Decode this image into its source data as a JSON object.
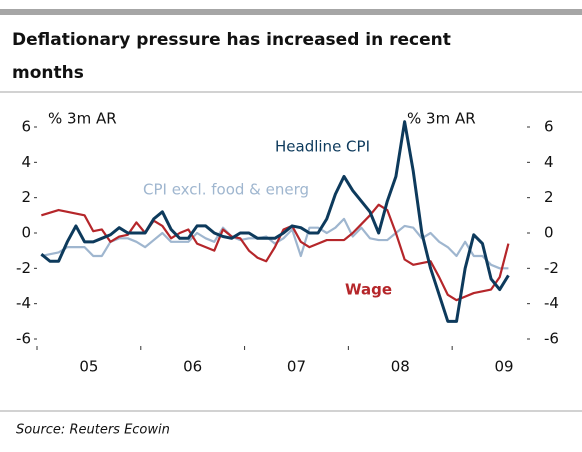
{
  "chart_data": {
    "type": "line",
    "title_lines": [
      "Deflationary pressure has increased in recent",
      "months"
    ],
    "y_label": "% 3m AR",
    "y2_label": "% 3m AR",
    "source": "Source: Reuters Ecowin",
    "xlim": [
      2005,
      2009.75
    ],
    "xticks": [
      {
        "value": 2005.5,
        "label": "05"
      },
      {
        "value": 2006.5,
        "label": "06"
      },
      {
        "value": 2007.5,
        "label": "07"
      },
      {
        "value": 2008.5,
        "label": "08"
      },
      {
        "value": 2009.5,
        "label": "09"
      }
    ],
    "x_tick_marks": [
      2006,
      2007,
      2008,
      2009
    ],
    "ylim": [
      -6,
      6
    ],
    "yticks": [
      6,
      4,
      2,
      0,
      -2,
      -4,
      -6
    ],
    "y2lim": [
      -6,
      6
    ],
    "y2ticks": [
      6,
      4,
      2,
      0,
      -2,
      -4,
      -6
    ],
    "x": [
      2005.042,
      2005.125,
      2005.208,
      2005.292,
      2005.375,
      2005.458,
      2005.542,
      2005.625,
      2005.708,
      2005.792,
      2005.875,
      2005.958,
      2006.042,
      2006.125,
      2006.208,
      2006.292,
      2006.375,
      2006.458,
      2006.542,
      2006.625,
      2006.708,
      2006.792,
      2006.875,
      2006.958,
      2007.042,
      2007.125,
      2007.208,
      2007.292,
      2007.375,
      2007.458,
      2007.542,
      2007.625,
      2007.708,
      2007.792,
      2007.875,
      2007.958,
      2008.042,
      2008.125,
      2008.208,
      2008.292,
      2008.375,
      2008.458,
      2008.542,
      2008.625,
      2008.708,
      2008.792,
      2008.875,
      2008.958,
      2009.042,
      2009.125,
      2009.208,
      2009.292,
      2009.375,
      2009.458,
      2009.542
    ],
    "series": [
      {
        "name": "CPI excl. food & energ",
        "color": "#9fb6cf",
        "values": [
          -1.3,
          -1.2,
          -1.1,
          -0.8,
          -0.8,
          -0.8,
          -1.3,
          -1.3,
          -0.5,
          -0.3,
          -0.3,
          -0.5,
          -0.8,
          -0.4,
          0,
          -0.5,
          -0.5,
          -0.5,
          0,
          -0.3,
          -0.5,
          0.3,
          -0.2,
          -0.4,
          -0.3,
          -0.3,
          -0.2,
          -0.6,
          -0.3,
          0.2,
          -1.3,
          0.3,
          0.3,
          0,
          0.3,
          0.8,
          -0.2,
          0.3,
          -0.3,
          -0.4,
          -0.4,
          0,
          0.4,
          0.3,
          -0.3,
          0,
          -0.5,
          -0.8,
          -1.3,
          -0.5,
          -1.3,
          -1.3,
          -1.8,
          -2,
          -2
        ]
      },
      {
        "name": "Wage",
        "color": "#b5262a",
        "values": [
          1.0,
          1.15,
          1.3,
          1.2,
          1.1,
          1.0,
          0.1,
          0.2,
          -0.5,
          -0.2,
          -0.1,
          0.6,
          0,
          0.7,
          0.4,
          -0.3,
          0,
          0.2,
          -0.6,
          -0.8,
          -1.0,
          0.2,
          -0.2,
          -0.3,
          -1.0,
          -1.4,
          -1.6,
          -0.8,
          0.2,
          0.4,
          -0.5,
          -0.8,
          -0.6,
          -0.4,
          -0.4,
          -0.4,
          0,
          0.5,
          1.0,
          1.6,
          1.3,
          0,
          -1.5,
          -1.8,
          -1.7,
          -1.6,
          -2.5,
          -3.5,
          -3.8,
          -3.6,
          -3.4,
          -3.3,
          -3.2,
          -2.5,
          -0.6
        ]
      },
      {
        "name": "Headline CPI",
        "color": "#0d3a5c",
        "values": [
          -1.2,
          -1.6,
          -1.6,
          -0.5,
          0.4,
          -0.5,
          -0.5,
          -0.3,
          -0.1,
          0.3,
          0,
          0,
          0,
          0.8,
          1.2,
          0.2,
          -0.3,
          -0.3,
          0.4,
          0.4,
          0,
          -0.2,
          -0.3,
          0,
          0,
          -0.3,
          -0.3,
          -0.3,
          0,
          0.4,
          0.3,
          0,
          0,
          0.8,
          2.2,
          3.2,
          2.4,
          1.8,
          1.2,
          0,
          1.8,
          3.2,
          6.3,
          3.5,
          0,
          -2,
          -3.5,
          -5,
          -5,
          -2,
          -0.1,
          -0.6,
          -2.6,
          -3.2,
          -2.4
        ]
      }
    ]
  }
}
